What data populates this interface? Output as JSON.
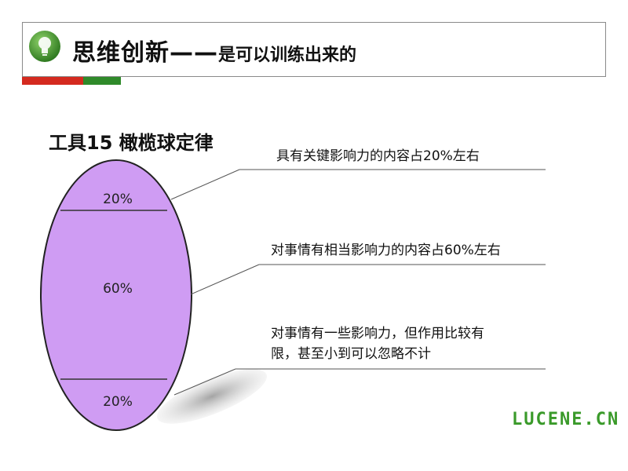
{
  "header": {
    "title_main": "思维创新——",
    "title_sub": "是可以训练出来的",
    "accent_colors": {
      "red": "#d42a1f",
      "green": "#2f8a2a"
    }
  },
  "logo": {
    "icon": "lightbulb-icon",
    "color": "#3f9a2f"
  },
  "tool_title": "工具15 橄榄球定律",
  "segments": [
    {
      "label": "20%",
      "value": 20
    },
    {
      "label": "60%",
      "value": 60
    },
    {
      "label": "20%",
      "value": 20
    }
  ],
  "annotations": [
    {
      "text": "具有关键影响力的内容占20%左右"
    },
    {
      "text_lines": [
        "对事情有相当影响力的内容占60%左右"
      ]
    },
    {
      "text_lines": [
        "对事情有一些影响力，但作用比较有",
        "限，甚至小到可以忽略不计"
      ]
    }
  ],
  "ellipse_color": "#cf9cf3",
  "brand": "LUCENE.CN"
}
